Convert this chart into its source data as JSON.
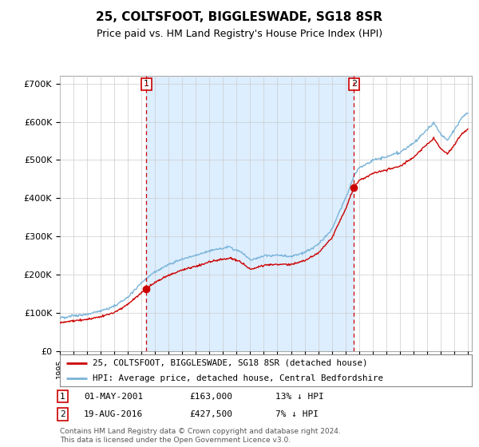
{
  "title": "25, COLTSFOOT, BIGGLESWADE, SG18 8SR",
  "subtitle": "Price paid vs. HM Land Registry's House Price Index (HPI)",
  "ylabel_ticks": [
    "£0",
    "£100K",
    "£200K",
    "£300K",
    "£400K",
    "£500K",
    "£600K",
    "£700K"
  ],
  "ytick_values": [
    0,
    100000,
    200000,
    300000,
    400000,
    500000,
    600000,
    700000
  ],
  "ylim": [
    0,
    720000
  ],
  "sale1_year": 2001.37,
  "sale1_price": 163000,
  "sale2_year": 2016.63,
  "sale2_price": 427500,
  "legend_house": "25, COLTSFOOT, BIGGLESWADE, SG18 8SR (detached house)",
  "legend_hpi": "HPI: Average price, detached house, Central Bedfordshire",
  "footnote": "Contains HM Land Registry data © Crown copyright and database right 2024.\nThis data is licensed under the Open Government Licence v3.0.",
  "line_color_house": "#cc0000",
  "line_color_hpi": "#7ab4d8",
  "fill_color": "#ddeeff",
  "vline_color": "#cc0000",
  "background_color": "#ffffff",
  "grid_color": "#cccccc",
  "dot_color": "#cc0000"
}
